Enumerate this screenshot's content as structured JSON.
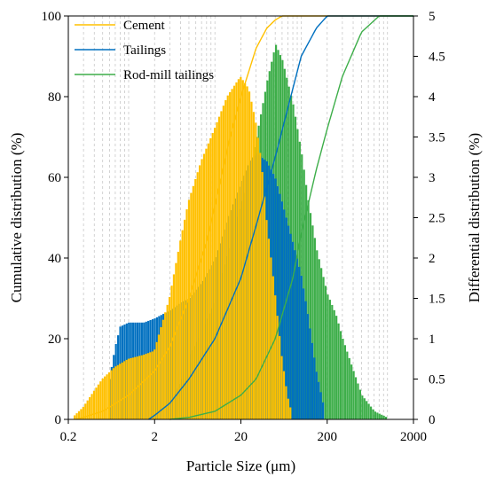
{
  "chart_data": {
    "type": "bar",
    "title": "",
    "xlabel": "Particle Size (μm)",
    "ylabel": "Cumulative distribution (%)",
    "y2label": "Differential distribution (%)",
    "x_scale": "log",
    "xlim": [
      0.2,
      2000
    ],
    "ylim": [
      0,
      100
    ],
    "y2lim": [
      0,
      5
    ],
    "x_ticks": [
      "0.2",
      "2",
      "20",
      "200",
      "2000"
    ],
    "y_ticks": [
      "0",
      "20",
      "40",
      "60",
      "80",
      "100"
    ],
    "y2_ticks": [
      "0",
      "0.5",
      "1",
      "1.5",
      "2",
      "2.5",
      "3",
      "3.5",
      "4",
      "4.5",
      "5"
    ],
    "grid": "vertical dashed",
    "legend_position": "top-left",
    "series": [
      {
        "name": "Cement",
        "color": "#FFC000",
        "cumulative": {
          "x": [
            0.25,
            0.5,
            1,
            2,
            3,
            5,
            8,
            10,
            15,
            20,
            30,
            40,
            50,
            60,
            70
          ],
          "y": [
            0,
            2,
            6,
            12,
            18,
            30,
            44,
            53,
            70,
            80,
            92,
            97,
            99,
            100,
            100
          ]
        },
        "differential": {
          "x": [
            0.24,
            0.3,
            0.4,
            0.5,
            0.7,
            1,
            1.5,
            2,
            3,
            4,
            5,
            7,
            10,
            14,
            20,
            25,
            30,
            35,
            40,
            50,
            60,
            70,
            80
          ],
          "y": [
            0.05,
            0.15,
            0.35,
            0.5,
            0.65,
            0.75,
            0.8,
            0.85,
            1.5,
            2.2,
            2.7,
            3.2,
            3.6,
            4.0,
            4.25,
            4.1,
            3.7,
            3.2,
            2.5,
            1.6,
            0.8,
            0.3,
            0.05
          ]
        }
      },
      {
        "name": "Tailings",
        "color": "#0070C0",
        "cumulative": {
          "x": [
            1.7,
            2,
            3,
            5,
            10,
            20,
            30,
            50,
            80,
            100,
            150,
            200,
            250
          ],
          "y": [
            0,
            1,
            4,
            10,
            20,
            35,
            48,
            65,
            82,
            90,
            97,
            100,
            100
          ]
        },
        "differential": {
          "x": [
            0.6,
            0.7,
            0.8,
            1,
            1.5,
            2,
            3,
            4,
            5,
            7,
            10,
            14,
            20,
            25,
            30,
            40,
            50,
            60,
            80,
            100,
            120,
            150,
            180
          ],
          "y": [
            0.5,
            0.9,
            1.15,
            1.2,
            1.2,
            1.25,
            1.35,
            1.45,
            1.5,
            1.7,
            2.0,
            2.5,
            2.95,
            3.2,
            3.3,
            3.2,
            3.0,
            2.7,
            2.2,
            1.8,
            1.3,
            0.6,
            0.2
          ]
        }
      },
      {
        "name": "Rod-mill tailings",
        "color": "#3DAE49",
        "cumulative": {
          "x": [
            3,
            5,
            10,
            20,
            30,
            50,
            80,
            100,
            150,
            200,
            300,
            500,
            800,
            1000
          ],
          "y": [
            0,
            0.5,
            2,
            6,
            10,
            20,
            35,
            46,
            62,
            72,
            85,
            96,
            100,
            100
          ]
        },
        "differential": {
          "x": [
            3,
            4,
            5,
            7,
            10,
            14,
            20,
            25,
            30,
            40,
            50,
            60,
            80,
            100,
            120,
            150,
            200,
            250,
            300,
            400,
            500,
            700,
            1000
          ],
          "y": [
            0.2,
            0.5,
            0.8,
            1.1,
            1.5,
            2.1,
            2.7,
            3.1,
            3.5,
            4.2,
            4.65,
            4.45,
            3.9,
            3.3,
            2.7,
            2.1,
            1.55,
            1.3,
            1.0,
            0.6,
            0.3,
            0.1,
            0.02
          ]
        }
      }
    ]
  }
}
